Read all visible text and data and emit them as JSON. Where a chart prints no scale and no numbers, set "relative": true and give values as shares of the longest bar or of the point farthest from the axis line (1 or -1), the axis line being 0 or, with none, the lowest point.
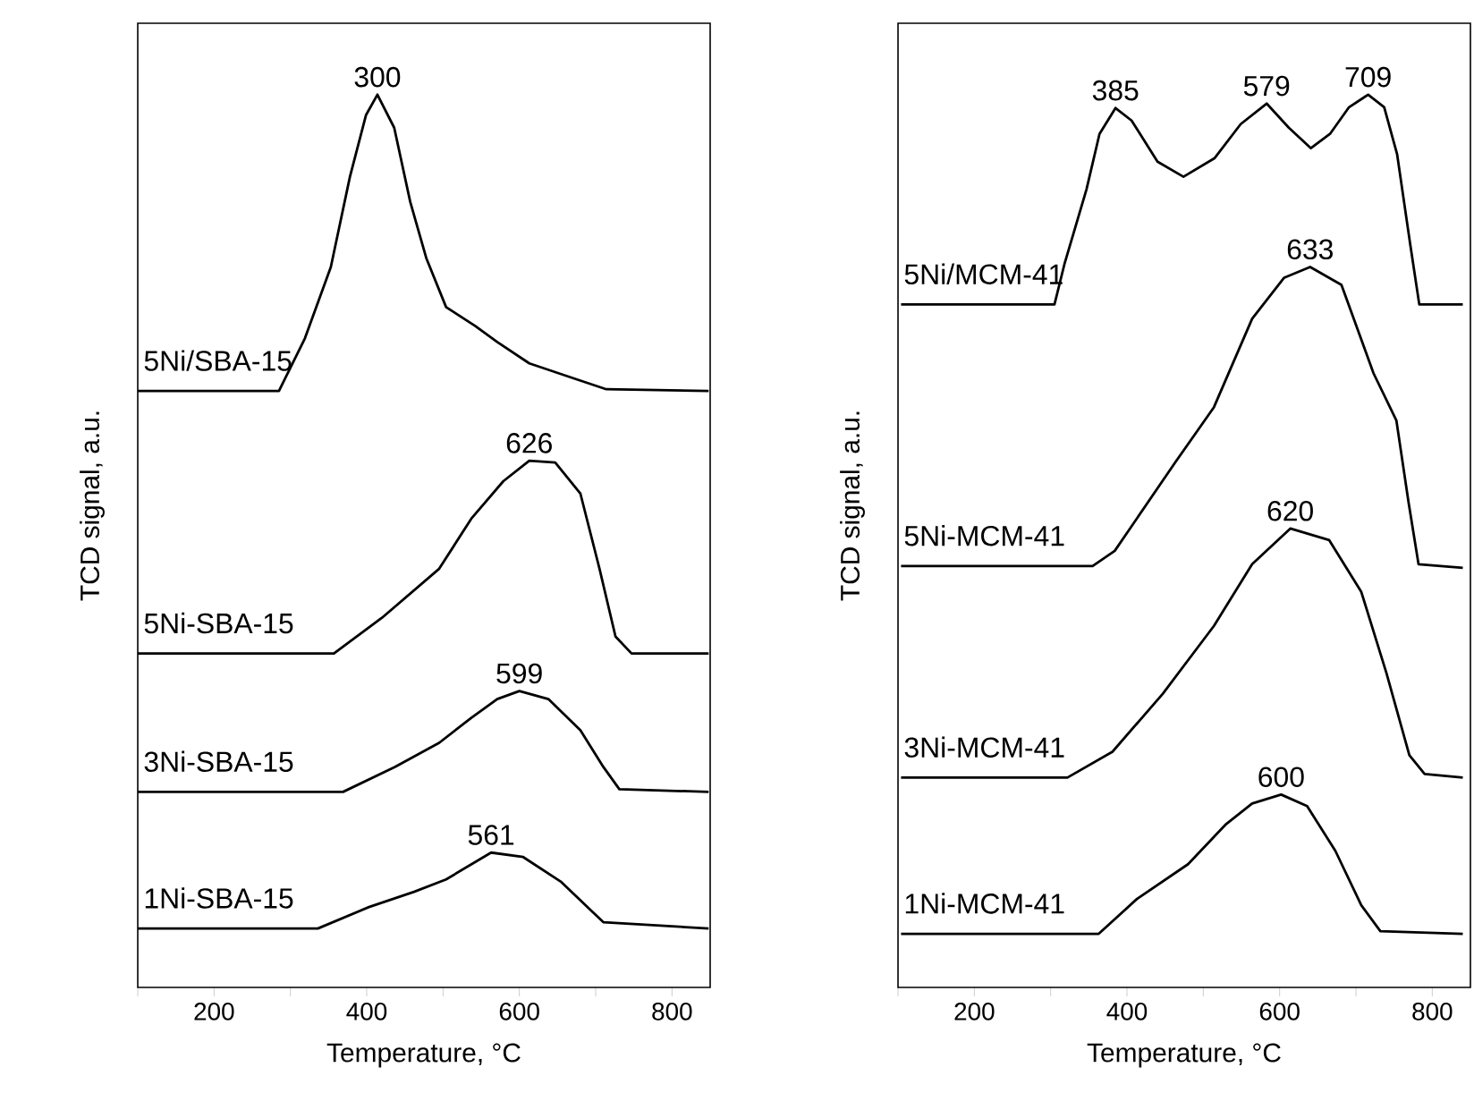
{
  "chart_data": [
    {
      "type": "line",
      "relative": true,
      "xlabel": "Temperature, °C",
      "ylabel": "TCD signal, a.u.",
      "xlim": [
        100,
        850
      ],
      "xticks": [
        {
          "value": 100,
          "label": null
        },
        200,
        {
          "value": 300,
          "label": null
        },
        400,
        {
          "value": 500,
          "label": null
        },
        600,
        {
          "value": 700,
          "label": null
        },
        800
      ],
      "series": [
        {
          "name": "1Ni-SBA-15",
          "color": "#000000",
          "x": [
            100,
            336,
            403,
            462,
            504,
            563,
            605,
            655,
            710,
            848
          ],
          "values": [
            0.066,
            0.066,
            0.09,
            0.107,
            0.121,
            0.151,
            0.146,
            0.118,
            0.073,
            0.066
          ]
        },
        {
          "name": "3Ni-SBA-15",
          "color": "#000000",
          "x": [
            100,
            369,
            437,
            495,
            537,
            571,
            600,
            638,
            680,
            710,
            731,
            848
          ],
          "values": [
            0.219,
            0.219,
            0.247,
            0.274,
            0.302,
            0.323,
            0.332,
            0.323,
            0.288,
            0.247,
            0.222,
            0.219
          ]
        },
        {
          "name": "5Ni-SBA-15",
          "color": "#000000",
          "x": [
            100,
            357,
            420,
            495,
            537,
            579,
            613,
            647,
            680,
            705,
            726,
            747,
            848
          ],
          "values": [
            0.374,
            0.374,
            0.414,
            0.469,
            0.525,
            0.567,
            0.59,
            0.588,
            0.553,
            0.469,
            0.393,
            0.374,
            0.374
          ]
        },
        {
          "name": "5Ni/SBA-15",
          "color": "#000000",
          "x": [
            100,
            285,
            319,
            353,
            378,
            399,
            414,
            436,
            457,
            478,
            504,
            542,
            571,
            613,
            672,
            714,
            848
          ],
          "values": [
            0.668,
            0.668,
            0.727,
            0.807,
            0.908,
            0.977,
            1.0,
            0.963,
            0.88,
            0.817,
            0.762,
            0.741,
            0.723,
            0.699,
            0.682,
            0.67,
            0.668
          ]
        }
      ],
      "annotations": [
        {
          "text": "561",
          "x": 563,
          "y": 0.151
        },
        {
          "text": "599",
          "x": 600,
          "y": 0.332
        },
        {
          "text": "626",
          "x": 613,
          "y": 0.59
        },
        {
          "text": "300",
          "x": 414,
          "y": 1.0
        }
      ]
    },
    {
      "type": "line",
      "relative": true,
      "xlabel": "Temperature, °C",
      "ylabel": "TCD signal, a.u.",
      "xlim": [
        100,
        850
      ],
      "xticks": [
        {
          "value": 100,
          "label": null
        },
        200,
        {
          "value": 300,
          "label": null
        },
        400,
        {
          "value": 500,
          "label": null
        },
        600,
        {
          "value": 700,
          "label": null
        },
        800
      ],
      "series": [
        {
          "name": "1Ni-MCM-41",
          "color": "#000000",
          "x": [
            104,
            363,
            413,
            480,
            530,
            564,
            602,
            636,
            673,
            707,
            732,
            840
          ],
          "values": [
            0.06,
            0.06,
            0.099,
            0.138,
            0.183,
            0.206,
            0.216,
            0.203,
            0.153,
            0.092,
            0.063,
            0.06
          ]
        },
        {
          "name": "3Ni-MCM-41",
          "color": "#000000",
          "x": [
            104,
            322,
            381,
            447,
            514,
            564,
            614,
            665,
            707,
            740,
            770,
            790,
            840
          ],
          "values": [
            0.235,
            0.235,
            0.264,
            0.329,
            0.405,
            0.474,
            0.514,
            0.501,
            0.443,
            0.352,
            0.26,
            0.239,
            0.235
          ]
        },
        {
          "name": "5Ni-MCM-41",
          "color": "#000000",
          "x": [
            104,
            355,
            384,
            464,
            514,
            564,
            606,
            640,
            681,
            723,
            753,
            769,
            782,
            840
          ],
          "values": [
            0.472,
            0.472,
            0.489,
            0.589,
            0.65,
            0.749,
            0.795,
            0.807,
            0.787,
            0.688,
            0.635,
            0.543,
            0.474,
            0.47
          ]
        },
        {
          "name": "5Ni/MCM-41",
          "color": "#000000",
          "x": [
            104,
            305,
            318,
            347,
            364,
            385,
            406,
            440,
            474,
            515,
            549,
            583,
            612,
            641,
            666,
            691,
            716,
            737,
            754,
            771,
            783,
            840
          ],
          "values": [
            0.765,
            0.765,
            0.81,
            0.894,
            0.956,
            0.985,
            0.971,
            0.925,
            0.908,
            0.929,
            0.967,
            0.99,
            0.963,
            0.94,
            0.956,
            0.986,
            1.0,
            0.986,
            0.933,
            0.833,
            0.765,
            0.765
          ]
        }
      ],
      "annotations": [
        {
          "text": "600",
          "x": 602,
          "y": 0.216
        },
        {
          "text": "620",
          "x": 614,
          "y": 0.514
        },
        {
          "text": "633",
          "x": 640,
          "y": 0.807
        },
        {
          "text": "385",
          "x": 385,
          "y": 0.985
        },
        {
          "text": "579",
          "x": 583,
          "y": 0.99
        },
        {
          "text": "709",
          "x": 716,
          "y": 1.0
        }
      ]
    }
  ]
}
